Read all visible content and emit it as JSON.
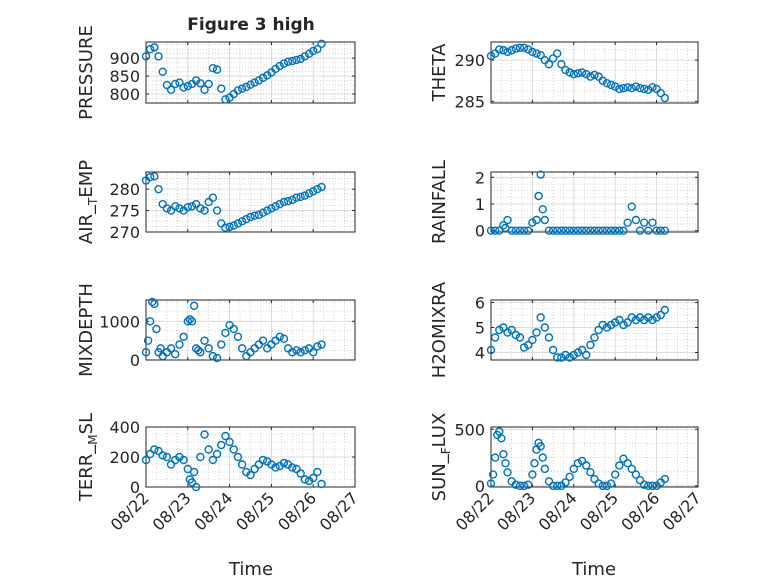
{
  "figure": {
    "title": "Figure 3 high",
    "xlabel": "Time",
    "xticks": [
      "08/22",
      "08/23",
      "08/24",
      "08/25",
      "08/26",
      "08/27"
    ],
    "marker_color": "#0072BD",
    "axes_color": "#262626",
    "grid_color": "#b8b8b8"
  },
  "chart_data": [
    {
      "type": "scatter",
      "panel": "pressure",
      "ylabel": "PRESSURE",
      "ylim": [
        775,
        945
      ],
      "yticks": [
        800,
        850,
        900
      ],
      "x": [
        22.0,
        22.1,
        22.2,
        22.3,
        22.4,
        22.5,
        22.6,
        22.7,
        22.8,
        22.9,
        23.0,
        23.1,
        23.2,
        23.3,
        23.4,
        23.5,
        23.6,
        23.7,
        23.8,
        23.9,
        24.0,
        24.1,
        24.2,
        24.3,
        24.4,
        24.5,
        24.6,
        24.7,
        24.8,
        24.9,
        25.0,
        25.1,
        25.2,
        25.3,
        25.4,
        25.5,
        25.6,
        25.7,
        25.8,
        25.9,
        26.0,
        26.1,
        26.2
      ],
      "y": [
        905,
        925,
        930,
        905,
        862,
        825,
        812,
        828,
        832,
        818,
        822,
        828,
        838,
        830,
        812,
        828,
        872,
        868,
        815,
        785,
        790,
        800,
        810,
        815,
        820,
        826,
        832,
        838,
        845,
        852,
        860,
        870,
        878,
        885,
        890,
        892,
        895,
        898,
        905,
        912,
        920,
        925,
        940
      ]
    },
    {
      "type": "scatter",
      "panel": "theta",
      "ylabel": "THETA",
      "ylim": [
        284.8,
        292.2
      ],
      "yticks": [
        285,
        290
      ],
      "x": [
        22.0,
        22.1,
        22.2,
        22.3,
        22.4,
        22.5,
        22.6,
        22.7,
        22.8,
        22.9,
        23.0,
        23.1,
        23.2,
        23.3,
        23.4,
        23.5,
        23.6,
        23.7,
        23.8,
        23.9,
        24.0,
        24.1,
        24.2,
        24.3,
        24.4,
        24.5,
        24.6,
        24.7,
        24.8,
        24.9,
        25.0,
        25.1,
        25.2,
        25.3,
        25.4,
        25.5,
        25.6,
        25.7,
        25.8,
        25.9,
        26.0,
        26.1,
        26.2
      ],
      "y": [
        290.5,
        290.8,
        291.3,
        291.2,
        291.0,
        291.2,
        291.4,
        291.5,
        291.5,
        291.3,
        291.0,
        290.8,
        290.6,
        290.0,
        289.5,
        290.2,
        290.8,
        289.5,
        288.8,
        288.5,
        288.3,
        288.4,
        288.5,
        288.3,
        288.0,
        288.2,
        288.0,
        287.5,
        287.2,
        287.0,
        286.8,
        286.5,
        286.6,
        286.7,
        286.6,
        286.8,
        286.6,
        286.5,
        286.4,
        286.7,
        286.5,
        286.0,
        285.4
      ]
    },
    {
      "type": "scatter",
      "panel": "air_temp",
      "ylabel": "AIR_TEMP",
      "ylim": [
        270,
        284
      ],
      "yticks": [
        270,
        275,
        280
      ],
      "x": [
        22.0,
        22.1,
        22.2,
        22.3,
        22.4,
        22.5,
        22.6,
        22.7,
        22.8,
        22.9,
        23.0,
        23.1,
        23.2,
        23.3,
        23.4,
        23.5,
        23.6,
        23.7,
        23.8,
        23.9,
        24.0,
        24.1,
        24.2,
        24.3,
        24.4,
        24.5,
        24.6,
        24.7,
        24.8,
        24.9,
        25.0,
        25.1,
        25.2,
        25.3,
        25.4,
        25.5,
        25.6,
        25.7,
        25.8,
        25.9,
        26.0,
        26.1,
        26.2
      ],
      "y": [
        282.0,
        282.8,
        283.0,
        280.0,
        276.5,
        275.5,
        275.0,
        276.0,
        275.5,
        275.0,
        275.8,
        276.0,
        276.5,
        275.5,
        275.0,
        277.0,
        278.0,
        275.0,
        272.0,
        271.0,
        271.2,
        271.5,
        272.0,
        272.5,
        273.0,
        273.5,
        273.8,
        274.0,
        274.5,
        275.0,
        275.5,
        276.0,
        276.5,
        277.0,
        277.2,
        277.5,
        278.0,
        278.2,
        278.5,
        279.0,
        279.5,
        280.0,
        280.5
      ]
    },
    {
      "type": "scatter",
      "panel": "rainfall",
      "ylabel": "RAINFALL",
      "ylim": [
        -0.05,
        2.2
      ],
      "yticks": [
        0,
        1,
        2
      ],
      "x": [
        22.0,
        22.1,
        22.2,
        22.3,
        22.35,
        22.4,
        22.5,
        22.6,
        22.7,
        22.8,
        22.9,
        23.0,
        23.1,
        23.15,
        23.2,
        23.25,
        23.3,
        23.4,
        23.5,
        23.6,
        23.7,
        23.8,
        23.9,
        24.0,
        24.1,
        24.2,
        24.3,
        24.4,
        24.5,
        24.6,
        24.7,
        24.8,
        24.9,
        25.0,
        25.1,
        25.2,
        25.3,
        25.4,
        25.5,
        25.6,
        25.7,
        25.8,
        25.9,
        26.0,
        26.1,
        26.2
      ],
      "y": [
        0,
        0,
        0,
        0.2,
        0.1,
        0.4,
        0,
        0,
        0,
        0,
        0,
        0.3,
        0.4,
        1.3,
        2.1,
        0.8,
        0.4,
        0,
        0,
        0,
        0,
        0,
        0,
        0,
        0,
        0,
        0,
        0,
        0,
        0,
        0,
        0,
        0,
        0,
        0,
        0,
        0.3,
        0.9,
        0.4,
        0,
        0.3,
        0,
        0.3,
        0,
        0,
        0
      ]
    },
    {
      "type": "scatter",
      "panel": "mixdepth",
      "ylabel": "MIXDEPTH",
      "ylim": [
        0,
        1550
      ],
      "yticks": [
        0,
        1000
      ],
      "x": [
        22.0,
        22.05,
        22.1,
        22.15,
        22.2,
        22.25,
        22.3,
        22.35,
        22.4,
        22.5,
        22.6,
        22.7,
        22.8,
        22.9,
        23.0,
        23.05,
        23.1,
        23.15,
        23.2,
        23.25,
        23.3,
        23.4,
        23.5,
        23.6,
        23.7,
        23.8,
        23.9,
        24.0,
        24.1,
        24.2,
        24.3,
        24.4,
        24.5,
        24.6,
        24.7,
        24.8,
        24.9,
        25.0,
        25.1,
        25.2,
        25.3,
        25.4,
        25.5,
        25.6,
        25.7,
        25.8,
        25.9,
        26.0,
        26.1,
        26.2
      ],
      "y": [
        200,
        500,
        1000,
        1500,
        1450,
        800,
        200,
        300,
        100,
        200,
        300,
        150,
        400,
        600,
        1000,
        1050,
        1000,
        1400,
        300,
        250,
        200,
        500,
        300,
        100,
        50,
        400,
        700,
        900,
        800,
        600,
        300,
        100,
        200,
        300,
        400,
        500,
        300,
        400,
        500,
        600,
        550,
        300,
        200,
        250,
        200,
        250,
        300,
        200,
        350,
        400
      ]
    },
    {
      "type": "scatter",
      "panel": "h2omixra",
      "ylabel": "H2OMIXRA",
      "ylim": [
        3.7,
        6.1
      ],
      "yticks": [
        4,
        5,
        6
      ],
      "x": [
        22.0,
        22.1,
        22.2,
        22.3,
        22.4,
        22.5,
        22.6,
        22.7,
        22.8,
        22.9,
        23.0,
        23.1,
        23.2,
        23.3,
        23.4,
        23.5,
        23.6,
        23.7,
        23.8,
        23.9,
        24.0,
        24.1,
        24.2,
        24.3,
        24.4,
        24.5,
        24.6,
        24.7,
        24.8,
        24.9,
        25.0,
        25.1,
        25.2,
        25.3,
        25.4,
        25.5,
        25.6,
        25.7,
        25.8,
        25.9,
        26.0,
        26.1,
        26.2
      ],
      "y": [
        4.1,
        4.6,
        4.9,
        5.0,
        4.8,
        4.9,
        4.7,
        4.6,
        4.2,
        4.3,
        4.5,
        4.8,
        5.4,
        5.0,
        4.6,
        4.1,
        3.8,
        3.8,
        3.9,
        3.8,
        3.9,
        4.0,
        4.1,
        3.9,
        4.3,
        4.6,
        4.9,
        5.1,
        5.0,
        5.1,
        5.2,
        5.3,
        5.1,
        5.2,
        5.4,
        5.3,
        5.4,
        5.3,
        5.4,
        5.3,
        5.4,
        5.5,
        5.7
      ]
    },
    {
      "type": "scatter",
      "panel": "terr_msl",
      "ylabel": "TERR_MSL",
      "ylim": [
        0,
        400
      ],
      "yticks": [
        0,
        200,
        400
      ],
      "x": [
        22.0,
        22.1,
        22.2,
        22.3,
        22.4,
        22.5,
        22.6,
        22.7,
        22.8,
        22.9,
        23.0,
        23.05,
        23.1,
        23.15,
        23.2,
        23.3,
        23.4,
        23.5,
        23.6,
        23.7,
        23.8,
        23.9,
        24.0,
        24.1,
        24.2,
        24.3,
        24.4,
        24.5,
        24.6,
        24.7,
        24.8,
        24.9,
        25.0,
        25.1,
        25.2,
        25.3,
        25.4,
        25.5,
        25.6,
        25.7,
        25.8,
        25.9,
        26.0,
        26.1,
        26.2
      ],
      "y": [
        180,
        220,
        250,
        240,
        210,
        200,
        150,
        180,
        200,
        180,
        120,
        50,
        30,
        100,
        0,
        200,
        350,
        250,
        180,
        220,
        280,
        340,
        300,
        250,
        200,
        150,
        100,
        80,
        120,
        150,
        180,
        170,
        150,
        130,
        140,
        160,
        150,
        130,
        120,
        90,
        50,
        40,
        60,
        100,
        20
      ]
    },
    {
      "type": "scatter",
      "panel": "sun_flux",
      "ylabel": "SUN_FLUX",
      "ylim": [
        -10,
        520
      ],
      "yticks": [
        0,
        500
      ],
      "x": [
        22.0,
        22.05,
        22.1,
        22.15,
        22.2,
        22.25,
        22.3,
        22.35,
        22.4,
        22.5,
        22.6,
        22.7,
        22.8,
        22.9,
        23.0,
        23.05,
        23.1,
        23.15,
        23.2,
        23.25,
        23.3,
        23.4,
        23.5,
        23.6,
        23.7,
        23.8,
        23.9,
        24.0,
        24.1,
        24.2,
        24.3,
        24.4,
        24.5,
        24.6,
        24.7,
        24.8,
        24.9,
        25.0,
        25.1,
        25.2,
        25.3,
        25.4,
        25.5,
        25.6,
        25.7,
        25.8,
        25.9,
        26.0,
        26.1,
        26.2
      ],
      "y": [
        20,
        100,
        250,
        450,
        480,
        420,
        280,
        200,
        120,
        40,
        10,
        0,
        0,
        10,
        100,
        200,
        320,
        380,
        350,
        250,
        150,
        40,
        0,
        0,
        0,
        30,
        80,
        150,
        200,
        220,
        180,
        120,
        60,
        20,
        0,
        0,
        20,
        100,
        180,
        240,
        200,
        150,
        100,
        50,
        10,
        0,
        0,
        0,
        30,
        60
      ]
    }
  ]
}
